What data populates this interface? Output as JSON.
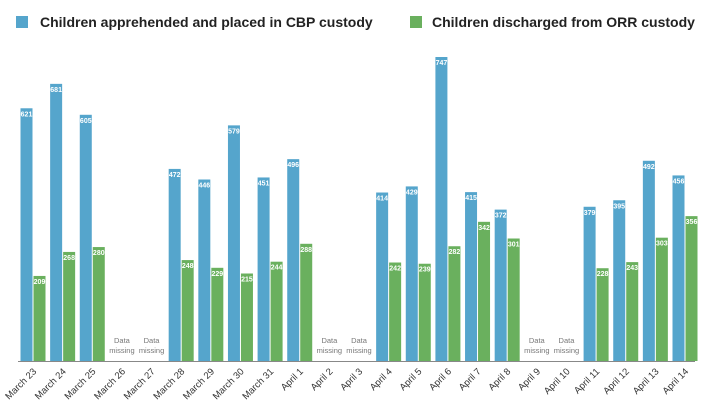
{
  "chart_data": {
    "type": "bar",
    "title": "",
    "xlabel": "",
    "ylabel": "",
    "ylim": [
      0,
      760
    ],
    "grid": false,
    "legend_placement": "top",
    "categories": [
      "March 23",
      "March 24",
      "March 25",
      "March 26",
      "March 27",
      "March 28",
      "March 29",
      "March 30",
      "March 31",
      "April 1",
      "April 2",
      "April 3",
      "April 4",
      "April 5",
      "April 6",
      "April 7",
      "April 8",
      "April 9",
      "April 10",
      "April 11",
      "April 12",
      "April 13",
      "April 14"
    ],
    "series": [
      {
        "name": "Children apprehended and placed in CBP custody",
        "color": "#55a5cc",
        "values": [
          621,
          681,
          605,
          null,
          null,
          472,
          446,
          579,
          451,
          496,
          null,
          null,
          414,
          429,
          747,
          415,
          372,
          null,
          null,
          379,
          395,
          492,
          456
        ]
      },
      {
        "name": "Children discharged from ORR custody",
        "color": "#6ab05e",
        "values": [
          209,
          268,
          280,
          null,
          null,
          248,
          229,
          215,
          244,
          288,
          null,
          null,
          242,
          239,
          282,
          342,
          301,
          null,
          null,
          228,
          243,
          303,
          356
        ]
      }
    ],
    "missing_label_line1": "Data",
    "missing_label_line2": "missing"
  }
}
